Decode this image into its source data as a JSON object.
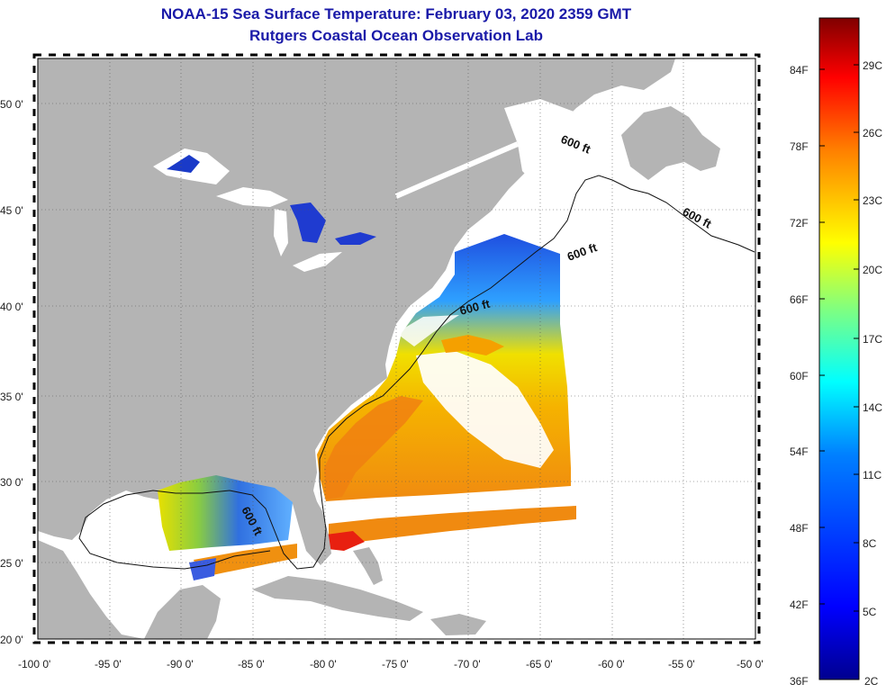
{
  "title": {
    "line1": "NOAA-15 Sea Surface Temperature:  February 03, 2020 2359 GMT",
    "line2": "Rutgers Coastal Ocean Observation Lab"
  },
  "map": {
    "lon_range": [
      -100,
      -50
    ],
    "lat_range": [
      20,
      52.5
    ],
    "lat_ticks": [
      "20 0'",
      "25 0'",
      "30 0'",
      "35 0'",
      "40 0'",
      "45 0'",
      "50 0'"
    ],
    "lon_ticks": [
      "-100 0'",
      "-95 0'",
      "-90 0'",
      "-85 0'",
      "-80 0'",
      "-75 0'",
      "-70 0'",
      "-65 0'",
      "-60 0'",
      "-55 0'",
      "-50 0'"
    ],
    "contour_label": "600 ft",
    "land_color": "#b4b4b4",
    "ocean_nodata_color": "#ffffff",
    "grid": "dotted"
  },
  "colorbar": {
    "min_label_f": "36F",
    "min_label_c": "2C",
    "f_labels": [
      "84F",
      "78F",
      "72F",
      "66F",
      "60F",
      "54F",
      "48F",
      "42F"
    ],
    "c_labels": [
      "29C",
      "26C",
      "23C",
      "20C",
      "17C",
      "14C",
      "11C",
      "8C",
      "5C"
    ],
    "colors": [
      "#00008f",
      "#0000ff",
      "#0080ff",
      "#00ffff",
      "#80ff80",
      "#ffff00",
      "#ff8000",
      "#ff0000",
      "#800000"
    ]
  }
}
